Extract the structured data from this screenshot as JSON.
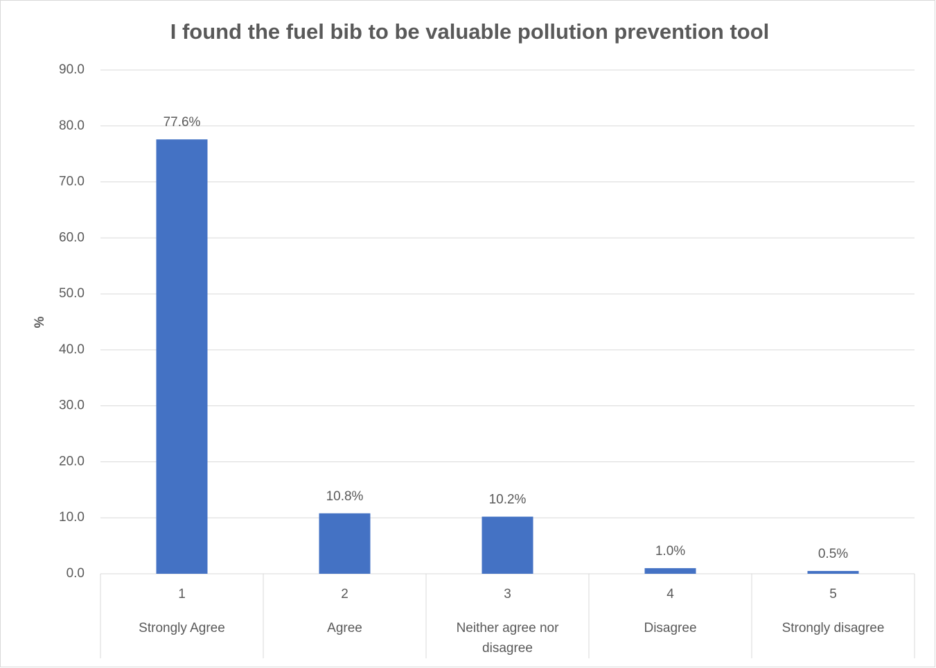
{
  "chart_data": {
    "type": "bar",
    "title": "I found the fuel bib to be valuable pollution prevention tool",
    "y_label": "%",
    "categories": [
      "1",
      "2",
      "3",
      "4",
      "5"
    ],
    "category_labels": [
      "Strongly Agree",
      "Agree",
      "Neither agree nor disagree",
      "Disagree",
      "Strongly disagree"
    ],
    "values": [
      77.6,
      10.8,
      10.2,
      1.0,
      0.5
    ],
    "value_labels": [
      "77.6%",
      "10.8%",
      "10.2%",
      "1.0%",
      "0.5%"
    ],
    "color": "#4472c4",
    "ylim": [
      0,
      90
    ],
    "yticks": [
      {
        "value": 0,
        "label": "0.0"
      },
      {
        "value": 10,
        "label": "10.0"
      },
      {
        "value": 20,
        "label": "20.0"
      },
      {
        "value": 30,
        "label": "30.0"
      },
      {
        "value": 40,
        "label": "40.0"
      },
      {
        "value": 50,
        "label": "50.0"
      },
      {
        "value": 60,
        "label": "60.0"
      },
      {
        "value": 70,
        "label": "70.0"
      },
      {
        "value": 80,
        "label": "80.0"
      },
      {
        "value": 90,
        "label": "90.0"
      }
    ],
    "grid": true
  }
}
